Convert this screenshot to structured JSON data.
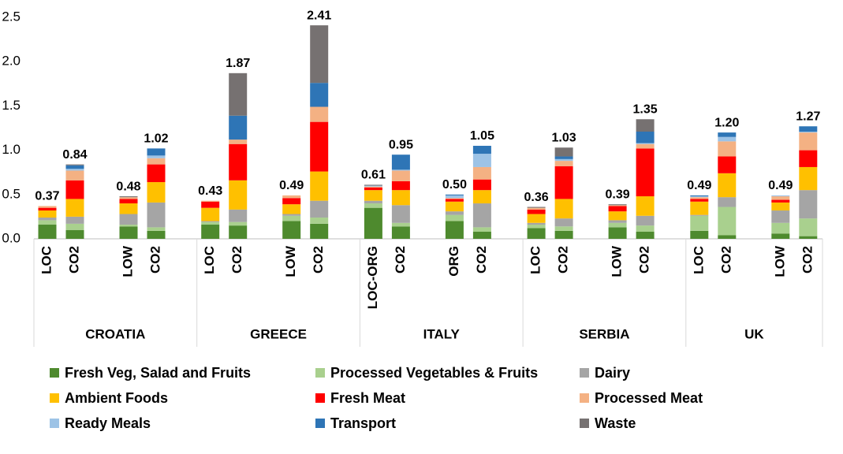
{
  "chart_data": {
    "type": "stacked_bar",
    "categories": [
      "LOC",
      "CO2",
      "LOW",
      "CO2",
      "LOC",
      "CO2",
      "LOW",
      "CO2",
      "LOC-ORG",
      "CO2",
      "ORG",
      "CO2",
      "LOC",
      "CO2",
      "LOW",
      "CO2",
      "LOC",
      "CO2",
      "LOW",
      "CO2"
    ],
    "groups": [
      "CROATIA",
      "GREECE",
      "ITALY",
      "SERBIA",
      "UK"
    ],
    "series": [
      {
        "name": "Fresh Veg, Salad and Fruits",
        "color": "#4e8a2e",
        "values": [
          0.16,
          0.1,
          0.14,
          0.09,
          0.16,
          0.15,
          0.2,
          0.17,
          0.35,
          0.14,
          0.2,
          0.08,
          0.12,
          0.09,
          0.13,
          0.08,
          0.09,
          0.04,
          0.06,
          0.03
        ]
      },
      {
        "name": "Processed Vegetables & Fruits",
        "color": "#a9d08e",
        "values": [
          0.05,
          0.07,
          0.02,
          0.04,
          0.03,
          0.04,
          0.06,
          0.07,
          0.05,
          0.04,
          0.07,
          0.05,
          0.04,
          0.05,
          0.05,
          0.07,
          0.17,
          0.32,
          0.12,
          0.2
        ]
      },
      {
        "name": "Dairy",
        "color": "#a5a5a5",
        "values": [
          0.03,
          0.08,
          0.12,
          0.28,
          0.01,
          0.14,
          0.02,
          0.19,
          0.03,
          0.2,
          0.04,
          0.27,
          0.02,
          0.09,
          0.03,
          0.11,
          0.01,
          0.11,
          0.14,
          0.32
        ]
      },
      {
        "name": "Ambient Foods",
        "color": "#ffc000",
        "values": [
          0.08,
          0.2,
          0.12,
          0.23,
          0.15,
          0.33,
          0.11,
          0.33,
          0.12,
          0.17,
          0.11,
          0.15,
          0.1,
          0.22,
          0.1,
          0.22,
          0.15,
          0.27,
          0.09,
          0.26
        ]
      },
      {
        "name": "Fresh Meat",
        "color": "#ff0000",
        "values": [
          0.03,
          0.21,
          0.05,
          0.2,
          0.07,
          0.41,
          0.07,
          0.56,
          0.03,
          0.1,
          0.03,
          0.12,
          0.05,
          0.37,
          0.06,
          0.54,
          0.03,
          0.19,
          0.03,
          0.19
        ]
      },
      {
        "name": "Processed Meat",
        "color": "#f4b183",
        "values": [
          0.02,
          0.11,
          0.02,
          0.07,
          0.01,
          0.05,
          0.03,
          0.17,
          0.01,
          0.12,
          0.01,
          0.14,
          0.02,
          0.06,
          0.01,
          0.05,
          0.02,
          0.17,
          0.04,
          0.2
        ]
      },
      {
        "name": "Ready Meals",
        "color": "#9dc3e6",
        "values": [
          0,
          0.02,
          0,
          0.03,
          0,
          0,
          0,
          0,
          0.01,
          0.01,
          0.03,
          0.15,
          0,
          0.02,
          0,
          0.01,
          0.01,
          0.05,
          0.01,
          0.01
        ]
      },
      {
        "name": "Transport",
        "color": "#2e75b6",
        "values": [
          0,
          0.04,
          0,
          0.08,
          0,
          0.27,
          0,
          0.27,
          0,
          0.17,
          0.01,
          0.09,
          0,
          0.03,
          0,
          0.13,
          0.01,
          0.05,
          0,
          0.06
        ]
      },
      {
        "name": "Waste",
        "color": "#767171",
        "values": [
          0,
          0.01,
          0.01,
          0,
          0,
          0.48,
          0,
          0.65,
          0.01,
          0,
          0,
          0,
          0.01,
          0.1,
          0.01,
          0.14,
          0,
          0,
          0,
          0
        ]
      }
    ],
    "totals": {
      "values": [
        0.37,
        0.84,
        0.48,
        1.02,
        0.43,
        1.87,
        0.49,
        2.41,
        0.61,
        0.95,
        0.5,
        1.05,
        0.36,
        1.03,
        0.39,
        1.35,
        0.49,
        1.2,
        0.49,
        1.27
      ],
      "value_labels": [
        "0.37",
        "0.84",
        "0.48",
        "1.02",
        "0.43",
        "1.87",
        "0.49",
        "2.41",
        "0.61",
        "0.95",
        "0.50",
        "1.05",
        "0.36",
        "1.03",
        "0.39",
        "1.35",
        "0.49",
        "1.20",
        "0.49",
        "1.27"
      ]
    },
    "ylim": [
      0,
      2.5
    ],
    "yticks": [
      {
        "value": 0,
        "label": "0.0"
      },
      {
        "value": 0.5,
        "label": "0.5"
      },
      {
        "value": 1,
        "label": "1.0"
      },
      {
        "value": 1.5,
        "label": "1.5"
      },
      {
        "value": 2,
        "label": "2.0"
      },
      2.5
    ],
    "legend": "bottom"
  }
}
